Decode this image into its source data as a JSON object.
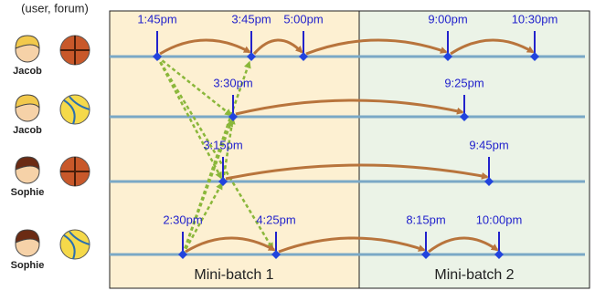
{
  "header": "(user, forum)",
  "rows": [
    {
      "user": "Jacob",
      "events": [
        "1:45pm",
        "3:45pm",
        "5:00pm",
        "9:00pm",
        "10:30pm"
      ]
    },
    {
      "user": "Jacob",
      "events": [
        "3:30pm",
        "9:25pm"
      ]
    },
    {
      "user": "Sophie",
      "events": [
        "3:15pm",
        "9:45pm"
      ]
    },
    {
      "user": "Sophie",
      "events": [
        "2:30pm",
        "4:25pm",
        "8:15pm",
        "10:00pm"
      ]
    }
  ],
  "batches": [
    "Mini-batch 1",
    "Mini-batch 2"
  ]
}
